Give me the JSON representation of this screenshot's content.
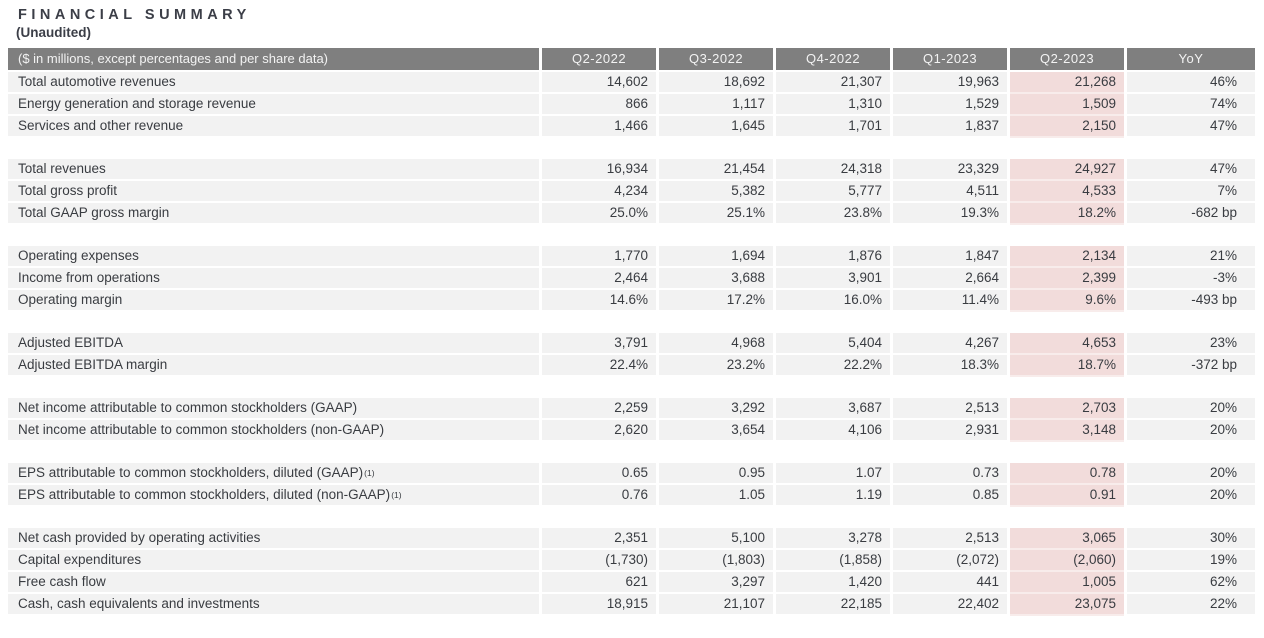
{
  "title": "FINANCIAL SUMMARY",
  "subtitle": "(Unaudited)",
  "colors": {
    "header_bg": "#7f7f7f",
    "header_text": "#f3f3f3",
    "row_bg": "#f2f2f2",
    "highlight_bg": "#f2dcdb",
    "highlight_row_gap": "#f8eceb",
    "text": "#393c41"
  },
  "table": {
    "header": {
      "label": "($ in millions, except percentages and per share data)",
      "columns": [
        "Q2-2022",
        "Q3-2022",
        "Q4-2022",
        "Q1-2023",
        "Q2-2023",
        "YoY"
      ]
    },
    "highlight_column": "Q2-2023",
    "highlight_column_index": 4,
    "groups": [
      {
        "rows": [
          {
            "label": "Total automotive revenues",
            "values": [
              "14,602",
              "18,692",
              "21,307",
              "19,963",
              "21,268",
              "46%"
            ]
          },
          {
            "label": "Energy generation and storage revenue",
            "values": [
              "866",
              "1,117",
              "1,310",
              "1,529",
              "1,509",
              "74%"
            ]
          },
          {
            "label": "Services and other revenue",
            "values": [
              "1,466",
              "1,645",
              "1,701",
              "1,837",
              "2,150",
              "47%"
            ]
          }
        ]
      },
      {
        "rows": [
          {
            "label": "Total revenues",
            "values": [
              "16,934",
              "21,454",
              "24,318",
              "23,329",
              "24,927",
              "47%"
            ]
          },
          {
            "label": "Total gross profit",
            "values": [
              "4,234",
              "5,382",
              "5,777",
              "4,511",
              "4,533",
              "7%"
            ]
          },
          {
            "label": "Total GAAP gross margin",
            "values": [
              "25.0%",
              "25.1%",
              "23.8%",
              "19.3%",
              "18.2%",
              "-682 bp"
            ]
          }
        ]
      },
      {
        "rows": [
          {
            "label": "Operating expenses",
            "values": [
              "1,770",
              "1,694",
              "1,876",
              "1,847",
              "2,134",
              "21%"
            ]
          },
          {
            "label": "Income from operations",
            "values": [
              "2,464",
              "3,688",
              "3,901",
              "2,664",
              "2,399",
              "-3%"
            ]
          },
          {
            "label": "Operating margin",
            "values": [
              "14.6%",
              "17.2%",
              "16.0%",
              "11.4%",
              "9.6%",
              "-493 bp"
            ]
          }
        ]
      },
      {
        "rows": [
          {
            "label": "Adjusted EBITDA",
            "values": [
              "3,791",
              "4,968",
              "5,404",
              "4,267",
              "4,653",
              "23%"
            ]
          },
          {
            "label": "Adjusted EBITDA margin",
            "values": [
              "22.4%",
              "23.2%",
              "22.2%",
              "18.3%",
              "18.7%",
              "-372 bp"
            ]
          }
        ]
      },
      {
        "rows": [
          {
            "label": "Net income attributable to common stockholders (GAAP)",
            "values": [
              "2,259",
              "3,292",
              "3,687",
              "2,513",
              "2,703",
              "20%"
            ]
          },
          {
            "label": "Net income attributable to common stockholders (non-GAAP)",
            "values": [
              "2,620",
              "3,654",
              "4,106",
              "2,931",
              "3,148",
              "20%"
            ]
          }
        ]
      },
      {
        "rows": [
          {
            "label": "EPS attributable to common stockholders, diluted (GAAP)",
            "sup": "(1)",
            "values": [
              "0.65",
              "0.95",
              "1.07",
              "0.73",
              "0.78",
              "20%"
            ]
          },
          {
            "label": "EPS attributable to common stockholders, diluted (non-GAAP)",
            "sup": "(1)",
            "values": [
              "0.76",
              "1.05",
              "1.19",
              "0.85",
              "0.91",
              "20%"
            ]
          }
        ]
      },
      {
        "rows": [
          {
            "label": "Net cash provided by operating activities",
            "values": [
              "2,351",
              "5,100",
              "3,278",
              "2,513",
              "3,065",
              "30%"
            ]
          },
          {
            "label": "Capital expenditures",
            "values": [
              "(1,730)",
              "(1,803)",
              "(1,858)",
              "(2,072)",
              "(2,060)",
              "19%"
            ]
          },
          {
            "label": "Free cash flow",
            "values": [
              "621",
              "3,297",
              "1,420",
              "441",
              "1,005",
              "62%"
            ]
          },
          {
            "label": "Cash, cash equivalents and investments",
            "values": [
              "18,915",
              "21,107",
              "22,185",
              "22,402",
              "23,075",
              "22%"
            ]
          }
        ]
      }
    ]
  }
}
